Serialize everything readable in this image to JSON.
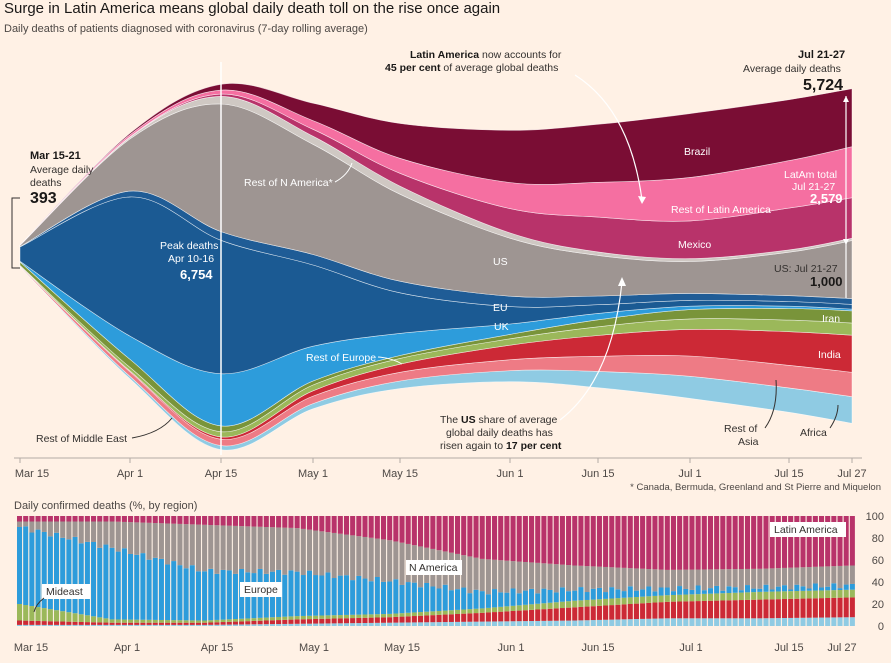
{
  "title": "Surge in Latin America means global daily death toll on the rise once again",
  "subtitle": "Daily deaths of patients diagnosed with coronavirus (7-day rolling average)",
  "footnote": "* Canada, Bermuda, Greenland and St Pierre and Miquelon",
  "colors": {
    "Brazil": "#7a0d34",
    "Rest of Latin America": "#f56fa1",
    "Mexico": "#b8336a",
    "US": "#9e9592",
    "Rest of N America": "#cfc8c3",
    "EU": "#1b5a93",
    "UK": "#2d9cdb",
    "Rest of Europe": "#1f5c96",
    "Iran": "#79943a",
    "Rest of Middle East": "#9bb85a",
    "India": "#cc2936",
    "Rest of Asia": "#ee7b85",
    "Africa": "#8fcbe3",
    "Background": "#fff1e5"
  },
  "chart_data": [
    {
      "type": "area",
      "subtype": "streamgraph",
      "title": "Surge in Latin America means global daily death toll on the rise once again",
      "ylabel": "Daily deaths of patients diagnosed with coronavirus (7-day rolling average)",
      "x": [
        "Mar 15",
        "Apr 1",
        "Apr 15",
        "May 1",
        "May 15",
        "Jun 1",
        "Jun 15",
        "Jul 1",
        "Jul 15",
        "Jul 27"
      ],
      "series": [
        {
          "name": "Africa",
          "values": [
            2,
            40,
            70,
            90,
            130,
            190,
            280,
            380,
            420,
            460
          ]
        },
        {
          "name": "Rest of Asia",
          "values": [
            15,
            80,
            110,
            130,
            150,
            190,
            260,
            350,
            390,
            420
          ]
        },
        {
          "name": "India",
          "values": [
            2,
            15,
            40,
            90,
            140,
            250,
            360,
            460,
            580,
            640
          ]
        },
        {
          "name": "Rest of Middle East",
          "values": [
            10,
            60,
            90,
            100,
            100,
            110,
            150,
            180,
            200,
            210
          ]
        },
        {
          "name": "Iran",
          "values": [
            60,
            140,
            100,
            70,
            50,
            75,
            120,
            160,
            200,
            210
          ]
        },
        {
          "name": "UK",
          "values": [
            10,
            400,
            900,
            600,
            380,
            180,
            110,
            60,
            40,
            30
          ]
        },
        {
          "name": "EU",
          "values": [
            250,
            2400,
            2300,
            1400,
            700,
            300,
            150,
            100,
            80,
            80
          ]
        },
        {
          "name": "Rest of Europe",
          "values": [
            5,
            100,
            150,
            180,
            200,
            180,
            150,
            120,
            100,
            100
          ]
        },
        {
          "name": "US",
          "values": [
            20,
            900,
            2200,
            1900,
            1500,
            1000,
            700,
            550,
            750,
            1000
          ]
        },
        {
          "name": "Rest of N America",
          "values": [
            1,
            30,
            130,
            140,
            140,
            90,
            60,
            50,
            40,
            40
          ]
        },
        {
          "name": "Mexico",
          "values": [
            1,
            8,
            40,
            120,
            220,
            420,
            600,
            650,
            720,
            700
          ]
        },
        {
          "name": "Rest of Latin America",
          "values": [
            4,
            35,
            70,
            150,
            260,
            450,
            600,
            750,
            820,
            880
          ]
        },
        {
          "name": "Brazil",
          "values": [
            1,
            25,
            100,
            300,
            600,
            900,
            1000,
            1100,
            1050,
            1000
          ]
        }
      ],
      "annotations": [
        {
          "label": "Mar 15-21",
          "text": "Average daily deaths",
          "value": "393"
        },
        {
          "label": "Peak deaths",
          "text": "Apr 10-16",
          "value": "6,754"
        },
        {
          "label": "Jul 21-27",
          "text": "Average daily deaths",
          "value": "5,724"
        },
        {
          "label": "LatAm total",
          "text": "Jul 21-27",
          "value": "2,579"
        },
        {
          "label": "US: Jul 21-27",
          "value": "1,000"
        },
        {
          "bold": "Latin America",
          "text": "now accounts for",
          "bold2": "45 per cent",
          "text2": "of average global deaths"
        },
        {
          "pre": "The",
          "bold": "US",
          "text": "share of average",
          "text2": "global daily deaths has",
          "text3": "risen again to",
          "bold2": "17 per cent"
        }
      ],
      "region_labels": {
        "brazil": "Brazil",
        "rest_latam": "Rest of Latin America",
        "mexico": "Mexico",
        "us": "US",
        "rest_n_america": "Rest of N America*",
        "eu": "EU",
        "uk": "UK",
        "rest_europe": "Rest of Europe",
        "iran": "Iran",
        "india": "India",
        "rest_asia_1": "Rest of",
        "rest_asia_2": "Asia",
        "africa": "Africa",
        "rest_middle_east": "Rest of Middle East"
      }
    },
    {
      "type": "bar",
      "subtype": "stacked-100",
      "title": "Daily confirmed deaths (%, by region)",
      "x": [
        "Mar 15",
        "Apr 1",
        "Apr 15",
        "May 1",
        "May 15",
        "Jun 1",
        "Jun 15",
        "Jul 1",
        "Jul 15",
        "Jul 27"
      ],
      "ylim": [
        0,
        100
      ],
      "yticks": [
        0,
        20,
        40,
        60,
        80,
        100
      ],
      "series": [
        {
          "name": "Africa",
          "values": [
            1,
            1,
            1,
            2,
            3,
            4,
            5,
            7,
            7,
            8
          ]
        },
        {
          "name": "Asia",
          "values": [
            4,
            2,
            2,
            4,
            5,
            8,
            12,
            15,
            17,
            18
          ]
        },
        {
          "name": "Mideast",
          "values": [
            15,
            3,
            2,
            3,
            3,
            4,
            6,
            6,
            7,
            7
          ]
        },
        {
          "name": "Europe",
          "values": [
            70,
            65,
            45,
            40,
            30,
            15,
            10,
            6,
            4,
            4
          ]
        },
        {
          "name": "N America",
          "values": [
            5,
            24,
            42,
            40,
            37,
            30,
            22,
            17,
            17,
            18
          ]
        },
        {
          "name": "Latin America",
          "values": [
            5,
            5,
            8,
            11,
            22,
            39,
            45,
            49,
            48,
            45
          ]
        }
      ],
      "labels": {
        "latam": "Latin America",
        "namerica": "N America",
        "europe": "Europe",
        "mideast": "Mideast"
      }
    }
  ]
}
